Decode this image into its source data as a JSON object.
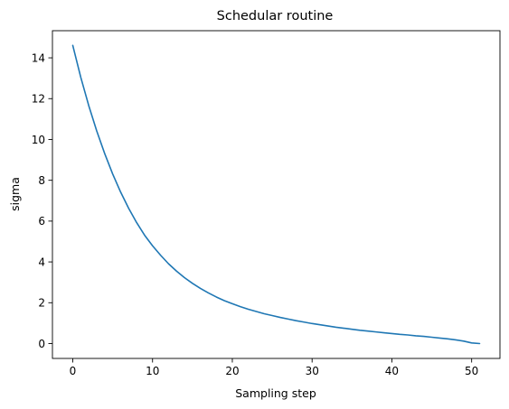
{
  "chart_data": {
    "type": "line",
    "title": "Schedular routine",
    "xlabel": "Sampling step",
    "ylabel": "sigma",
    "xlim": [
      -2.55,
      53.55
    ],
    "ylim": [
      -0.73,
      15.33
    ],
    "xticks": [
      0,
      10,
      20,
      30,
      40,
      50
    ],
    "yticks": [
      0,
      2,
      4,
      6,
      8,
      10,
      12,
      14
    ],
    "grid": false,
    "line_color": "#1f77b4",
    "series": [
      {
        "x": [
          0,
          1,
          2,
          3,
          4,
          5,
          6,
          7,
          8,
          9,
          10,
          11,
          12,
          13,
          14,
          15,
          16,
          17,
          18,
          19,
          20,
          21,
          22,
          23,
          24,
          25,
          26,
          27,
          28,
          29,
          30,
          31,
          32,
          33,
          34,
          35,
          36,
          37,
          38,
          39,
          40,
          41,
          42,
          43,
          44,
          45,
          46,
          47,
          48,
          49,
          50,
          51
        ],
        "y": [
          14.61,
          13.05,
          11.66,
          10.42,
          9.31,
          8.31,
          7.42,
          6.63,
          5.93,
          5.31,
          4.79,
          4.33,
          3.91,
          3.55,
          3.23,
          2.95,
          2.7,
          2.48,
          2.28,
          2.1,
          1.95,
          1.81,
          1.68,
          1.57,
          1.46,
          1.37,
          1.28,
          1.2,
          1.12,
          1.05,
          0.98,
          0.92,
          0.86,
          0.8,
          0.75,
          0.7,
          0.65,
          0.61,
          0.57,
          0.53,
          0.49,
          0.45,
          0.42,
          0.38,
          0.35,
          0.31,
          0.27,
          0.23,
          0.18,
          0.12,
          0.03,
          0.0
        ]
      }
    ]
  }
}
